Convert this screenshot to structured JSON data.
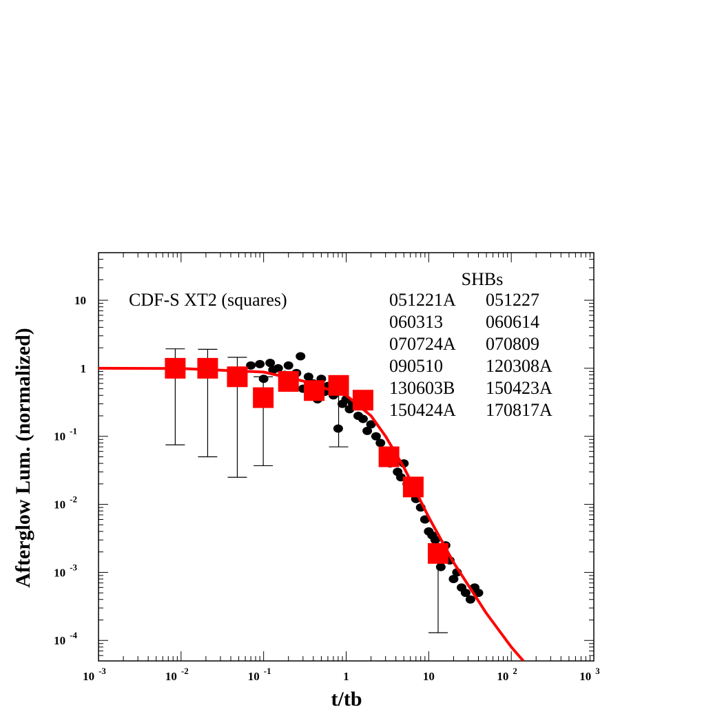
{
  "chart_data": {
    "type": "scatter",
    "xlabel": "t/tb",
    "ylabel": "Afterglow Lum. (normalized)",
    "log_x": true,
    "log_y": true,
    "xlim": [
      0.001,
      1000
    ],
    "ylim": [
      5e-05,
      50
    ],
    "xticks": [
      {
        "value": 0.001,
        "label": "10",
        "exponent": "-3"
      },
      {
        "value": 0.01,
        "label": "10",
        "exponent": "-2"
      },
      {
        "value": 0.1,
        "label": "10",
        "exponent": "-1"
      },
      1,
      10,
      {
        "value": 100,
        "label": "10",
        "exponent": "2"
      },
      {
        "value": 1000,
        "label": "10",
        "exponent": "3"
      }
    ],
    "yticks": [
      {
        "value": 0.0001,
        "label": "10",
        "exponent": "-4"
      },
      {
        "value": 0.001,
        "label": "10",
        "exponent": "-3"
      },
      {
        "value": 0.01,
        "label": "10",
        "exponent": "-2"
      },
      {
        "value": 0.1,
        "label": "10",
        "exponent": "-1"
      },
      1,
      10
    ],
    "annotations": [
      "CDF-S XT2 (squares)",
      "SHBs"
    ],
    "shb_list": [
      [
        "051221A",
        "051227"
      ],
      [
        "060313",
        "060614"
      ],
      [
        "070724A",
        "070809"
      ],
      [
        "090510",
        "120308A"
      ],
      [
        "130603B",
        "150423A"
      ],
      [
        "150424A",
        "170817A"
      ]
    ],
    "series": [
      {
        "marker": "circle",
        "color": "#000000",
        "x": [
          0.05,
          0.07,
          0.09,
          0.1,
          0.12,
          0.13,
          0.15,
          0.18,
          0.2,
          0.22,
          0.25,
          0.28,
          0.3,
          0.35,
          0.4,
          0.45,
          0.5,
          0.55,
          0.6,
          0.7,
          0.8,
          0.9,
          1.0,
          1.1,
          1.2,
          1.4,
          1.6,
          1.8,
          2.0,
          2.3,
          2.6,
          3.0,
          3.4,
          3.8,
          4.2,
          4.6,
          5,
          5.5,
          6,
          7,
          8,
          9,
          10,
          11,
          12,
          14,
          16,
          18,
          20,
          22,
          25,
          28,
          32,
          36,
          40
        ],
        "y": [
          0.9,
          1.1,
          1.15,
          0.7,
          1.2,
          0.95,
          1.0,
          0.8,
          1.1,
          0.6,
          0.85,
          1.5,
          0.5,
          0.75,
          0.6,
          0.35,
          0.7,
          0.45,
          0.55,
          0.4,
          0.13,
          0.3,
          0.35,
          0.25,
          0.3,
          0.2,
          0.18,
          0.12,
          0.15,
          0.1,
          0.08,
          0.06,
          0.04,
          0.045,
          0.03,
          0.025,
          0.04,
          0.02,
          0.015,
          0.012,
          0.009,
          0.006,
          0.004,
          0.0035,
          0.003,
          0.0012,
          0.0025,
          0.0015,
          0.0008,
          0.001,
          0.0006,
          0.0005,
          0.0004,
          0.0006,
          0.0005
        ]
      },
      {
        "marker": "square",
        "color": "#ff0000",
        "x": [
          0.0085,
          0.021,
          0.048,
          0.099,
          0.2,
          0.41,
          0.81,
          1.6,
          3.3,
          6.5,
          13
        ],
        "y": [
          1.0,
          1.0,
          0.75,
          0.37,
          0.64,
          0.47,
          0.56,
          0.34,
          0.05,
          0.018,
          0.0019
        ],
        "y_low": [
          0.075,
          0.05,
          0.025,
          0.037,
          null,
          null,
          0.07,
          null,
          null,
          null,
          0.00013
        ],
        "y_high": [
          1.93,
          1.9,
          1.45,
          0.75,
          null,
          null,
          null,
          null,
          null,
          null,
          null
        ]
      }
    ],
    "fit_line": {
      "color": "#ff0000",
      "x": [
        0.001,
        0.01,
        0.1,
        0.3,
        1,
        2,
        3,
        5,
        10,
        20,
        50,
        100,
        140
      ],
      "y": [
        1,
        0.99,
        0.88,
        0.65,
        0.4,
        0.2,
        0.1,
        0.035,
        0.0065,
        0.0014,
        0.00025,
        8e-05,
        5e-05
      ]
    }
  }
}
